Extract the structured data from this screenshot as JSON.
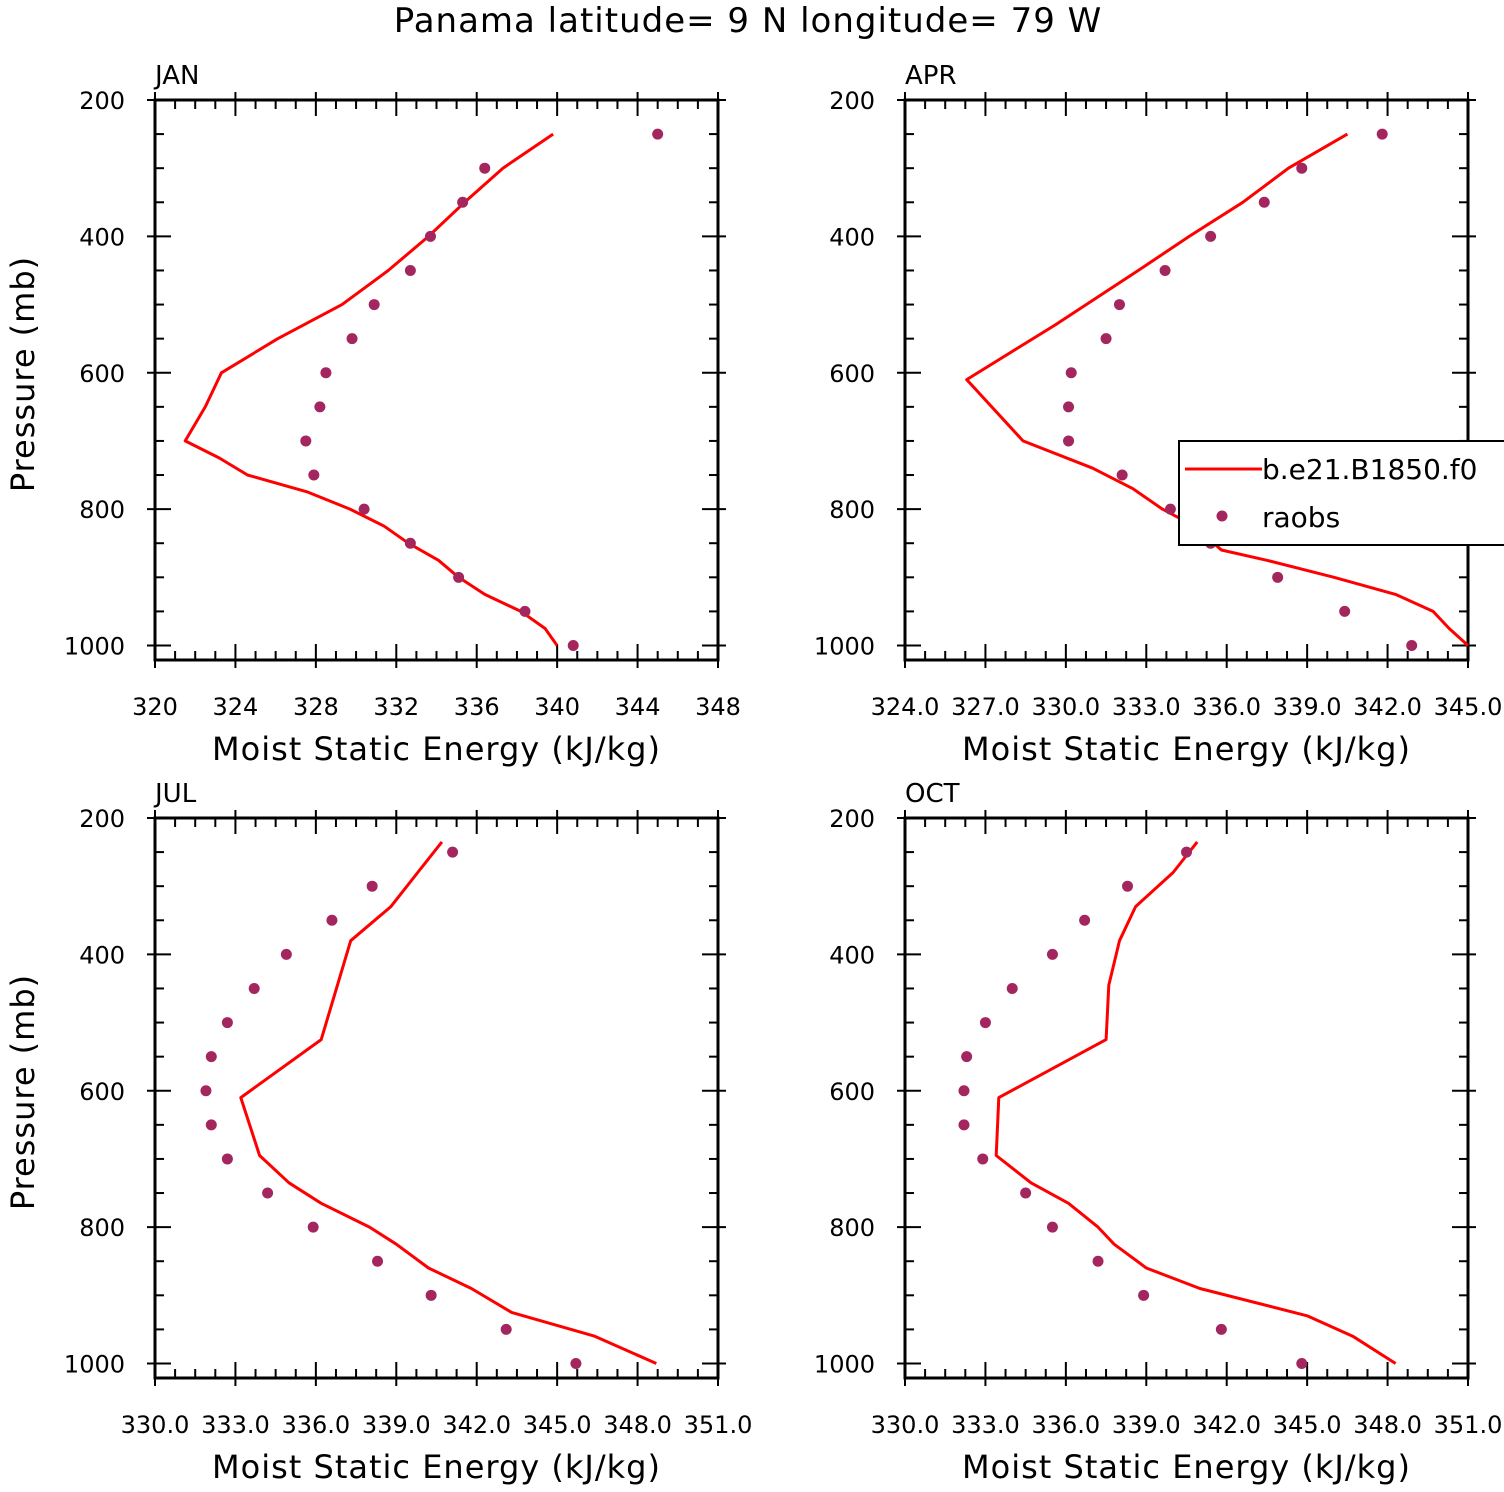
{
  "title": "Panama  latitude= 9 N longitude= 79 W",
  "colors": {
    "model": "#ff0000",
    "obs": "#a3265f",
    "axis": "#000000"
  },
  "legend": {
    "model_label": "b.e21.B1850.f0",
    "obs_label": "raobs"
  },
  "chart_data": [
    {
      "type": "line",
      "title": "JAN",
      "xlabel": "Moist Static Energy (kJ/kg)",
      "ylabel": "Pressure (mb)",
      "xlim": [
        320,
        348
      ],
      "ylim": [
        200,
        1000
      ],
      "x_ticks": [
        "320",
        "324",
        "328",
        "332",
        "336",
        "340",
        "344",
        "348"
      ],
      "y_ticks": [
        "200",
        "400",
        "600",
        "800",
        "1000"
      ],
      "series": [
        {
          "name": "b.e21.B1850.f0",
          "p": [
            1000,
            975,
            950,
            925,
            900,
            875,
            850,
            825,
            800,
            775,
            750,
            725,
            700,
            650,
            600,
            550,
            500,
            450,
            400,
            350,
            300,
            250
          ],
          "values": [
            340.0,
            339.4,
            338.2,
            336.4,
            335.1,
            334.1,
            332.6,
            331.4,
            329.7,
            327.6,
            324.6,
            323.2,
            321.5,
            322.5,
            323.3,
            326.1,
            329.3,
            331.6,
            333.6,
            335.4,
            337.3,
            339.8
          ]
        },
        {
          "name": "raobs",
          "p": [
            1000,
            950,
            900,
            850,
            800,
            750,
            700,
            650,
            600,
            550,
            500,
            450,
            400,
            350,
            300,
            250
          ],
          "values": [
            340.8,
            338.4,
            335.1,
            332.7,
            330.4,
            327.9,
            327.5,
            328.2,
            328.5,
            329.8,
            330.9,
            332.7,
            333.7,
            335.3,
            336.4,
            345.0
          ]
        }
      ]
    },
    {
      "type": "line",
      "title": "APR",
      "xlabel": "Moist Static Energy (kJ/kg)",
      "ylabel": "",
      "xlim": [
        324.0,
        345.0
      ],
      "ylim": [
        200,
        1000
      ],
      "x_ticks": [
        "324.0",
        "327.0",
        "330.0",
        "333.0",
        "336.0",
        "339.0",
        "342.0",
        "345.0"
      ],
      "y_ticks": [
        "200",
        "400",
        "600",
        "800",
        "1000"
      ],
      "series": [
        {
          "name": "b.e21.B1850.f0",
          "p": [
            1000,
            975,
            950,
            925,
            900,
            875,
            860,
            825,
            800,
            770,
            740,
            700,
            610,
            530,
            450,
            400,
            350,
            300,
            250
          ],
          "values": [
            345.0,
            344.3,
            343.7,
            342.3,
            340.0,
            337.5,
            335.8,
            334.8,
            333.6,
            332.5,
            331.0,
            328.4,
            326.3,
            329.6,
            332.7,
            334.6,
            336.6,
            338.3,
            340.5
          ]
        },
        {
          "name": "raobs",
          "p": [
            1000,
            950,
            900,
            850,
            800,
            750,
            700,
            650,
            600,
            550,
            500,
            450,
            400,
            350,
            300,
            250
          ],
          "values": [
            342.9,
            340.4,
            337.9,
            335.4,
            333.9,
            332.1,
            330.1,
            330.1,
            330.2,
            331.5,
            332.0,
            333.7,
            335.4,
            337.4,
            338.8,
            341.8
          ]
        }
      ]
    },
    {
      "type": "line",
      "title": "JUL",
      "xlabel": "Moist Static Energy (kJ/kg)",
      "ylabel": "Pressure (mb)",
      "xlim": [
        330.0,
        351.0
      ],
      "ylim": [
        200,
        1000
      ],
      "x_ticks": [
        "330.0",
        "333.0",
        "336.0",
        "339.0",
        "342.0",
        "345.0",
        "348.0",
        "351.0"
      ],
      "y_ticks": [
        "200",
        "400",
        "600",
        "800",
        "1000"
      ],
      "series": [
        {
          "name": "b.e21.B1850.f0",
          "p": [
            1000,
            960,
            925,
            890,
            860,
            825,
            800,
            765,
            735,
            695,
            610,
            525,
            380,
            330,
            280,
            235
          ],
          "values": [
            348.7,
            346.4,
            343.3,
            341.8,
            340.2,
            339.0,
            338.0,
            336.2,
            335.0,
            333.9,
            333.2,
            336.2,
            337.3,
            338.8,
            339.8,
            340.7
          ]
        },
        {
          "name": "raobs",
          "p": [
            1000,
            950,
            900,
            850,
            800,
            750,
            700,
            650,
            600,
            550,
            500,
            450,
            400,
            350,
            300,
            250
          ],
          "values": [
            345.7,
            343.1,
            340.3,
            338.3,
            335.9,
            334.2,
            332.7,
            332.1,
            331.9,
            332.1,
            332.7,
            333.7,
            334.9,
            336.6,
            338.1,
            341.1
          ]
        }
      ]
    },
    {
      "type": "line",
      "title": "OCT",
      "xlabel": "Moist Static Energy (kJ/kg)",
      "ylabel": "",
      "xlim": [
        330.0,
        351.0
      ],
      "ylim": [
        200,
        1000
      ],
      "x_ticks": [
        "330.0",
        "333.0",
        "336.0",
        "339.0",
        "342.0",
        "345.0",
        "348.0",
        "351.0"
      ],
      "y_ticks": [
        "200",
        "400",
        "600",
        "800",
        "1000"
      ],
      "series": [
        {
          "name": "b.e21.B1850.f0",
          "p": [
            1000,
            960,
            930,
            890,
            860,
            825,
            800,
            765,
            735,
            695,
            610,
            525,
            445,
            380,
            330,
            280,
            255,
            235
          ],
          "values": [
            348.3,
            346.7,
            345.0,
            341.0,
            339.0,
            337.8,
            337.2,
            336.1,
            334.7,
            333.4,
            333.5,
            337.5,
            337.6,
            338.0,
            338.6,
            340.0,
            340.5,
            340.9
          ]
        },
        {
          "name": "raobs",
          "p": [
            1000,
            950,
            900,
            850,
            800,
            750,
            700,
            650,
            600,
            550,
            500,
            450,
            400,
            350,
            300,
            250
          ],
          "values": [
            344.8,
            341.8,
            338.9,
            337.2,
            335.5,
            334.5,
            332.9,
            332.2,
            332.2,
            332.3,
            333.0,
            334.0,
            335.5,
            336.7,
            338.3,
            340.5
          ]
        }
      ]
    }
  ]
}
